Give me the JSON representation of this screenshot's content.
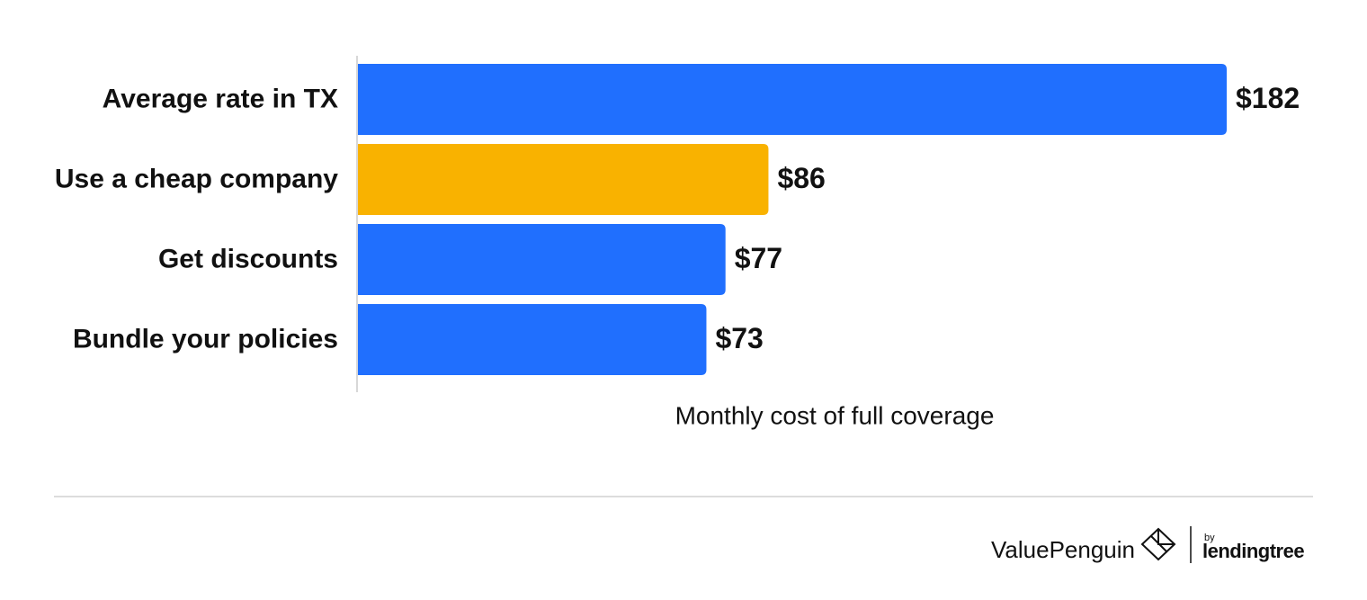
{
  "chart_data": {
    "type": "hbar",
    "categories": [
      "Average rate in TX",
      "Use a cheap company",
      "Get discounts",
      "Bundle your policies"
    ],
    "values": [
      182,
      86,
      77,
      73
    ],
    "value_labels": [
      "$182",
      "$86",
      "$77",
      "$73"
    ],
    "colors": [
      "#206ffe",
      "#f9b200",
      "#206ffe",
      "#206ffe"
    ],
    "xlabel": "Monthly cost of full coverage",
    "xlim": [
      0,
      182
    ]
  },
  "footer": {
    "brand": "ValuePenguin",
    "by": "by",
    "partner": "lendingtree"
  }
}
